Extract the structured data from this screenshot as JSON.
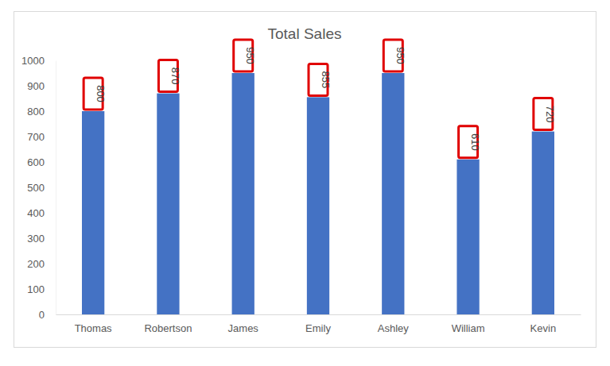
{
  "chart_data": {
    "type": "bar",
    "title": "Total Sales",
    "categories": [
      "Thomas",
      "Robertson",
      "James",
      "Emily",
      "Ashley",
      "William",
      "Kevin"
    ],
    "values": [
      800,
      870,
      950,
      855,
      950,
      610,
      720
    ],
    "color": "#4472c4",
    "ylim": [
      0,
      1000
    ],
    "yticks": [
      0,
      100,
      200,
      300,
      400,
      500,
      600,
      700,
      800,
      900,
      1000
    ],
    "grid": false,
    "data_labels": true
  }
}
